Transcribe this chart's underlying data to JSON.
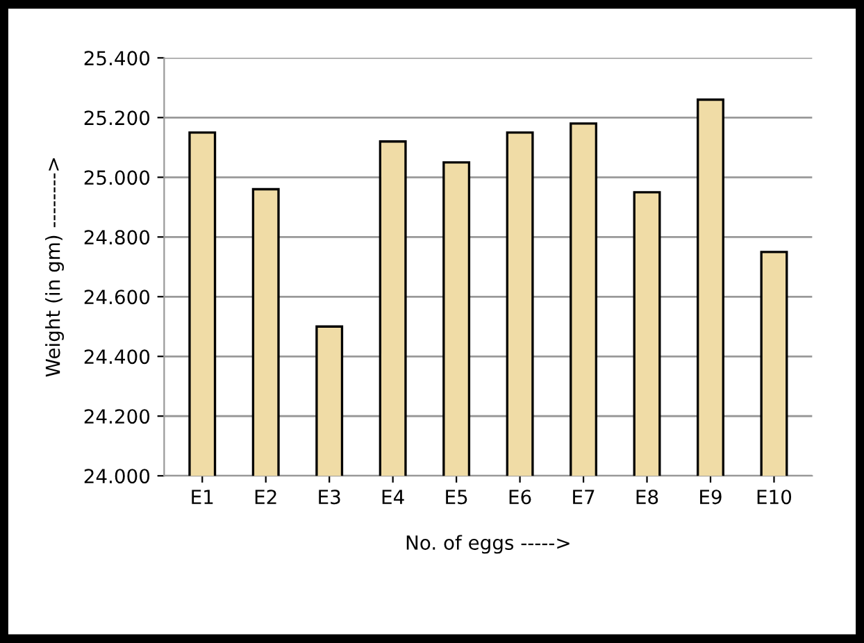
{
  "chart_data": {
    "type": "bar",
    "xlabel": "No. of eggs ----->",
    "ylabel": "Weight (in gm) -------->",
    "categories": [
      "E1",
      "E2",
      "E3",
      "E4",
      "E5",
      "E6",
      "E7",
      "E8",
      "E9",
      "E10"
    ],
    "values": [
      25.15,
      24.96,
      24.5,
      25.12,
      25.05,
      25.15,
      25.18,
      24.95,
      25.26,
      24.75
    ],
    "color": "#f0dca6",
    "ylim": [
      24.0,
      25.4
    ],
    "yticks": [
      {
        "value": 24.0,
        "label": "24.000"
      },
      {
        "value": 24.2,
        "label": "24.200"
      },
      {
        "value": 24.4,
        "label": "24.400"
      },
      {
        "value": 24.6,
        "label": "24.600"
      },
      {
        "value": 24.8,
        "label": "24.800"
      },
      {
        "value": 25.0,
        "label": "25.000"
      },
      {
        "value": 25.2,
        "label": "25.200"
      },
      {
        "value": 25.4,
        "label": "25.400"
      }
    ],
    "grid": "y"
  }
}
